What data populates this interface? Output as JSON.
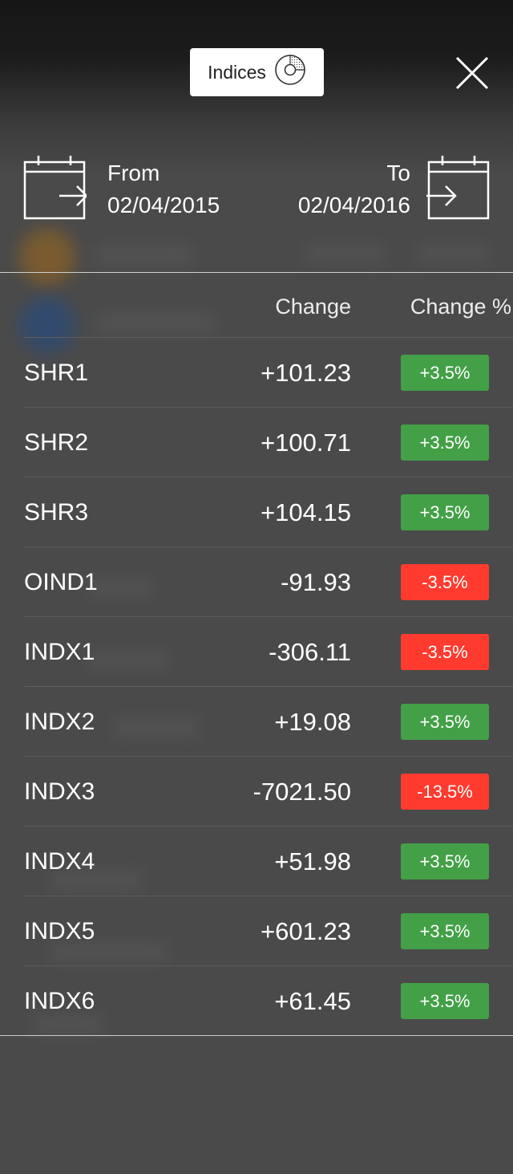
{
  "colors": {
    "positive": "#43a047",
    "negative": "#ff3b2f",
    "text": "#ffffff",
    "overlay": "#4a4a4a"
  },
  "header": {
    "selector_label": "Indices",
    "selector_icon": "pie-chart-icon",
    "close_icon": "close-icon"
  },
  "date_range": {
    "from_label": "From",
    "from_value": "02/04/2015",
    "to_label": "To",
    "to_value": "02/04/2016"
  },
  "table": {
    "columns": {
      "change": "Change",
      "change_pct": "Change %"
    },
    "rows": [
      {
        "name": "SHR1",
        "change": "+101.23",
        "pct": "+3.5%",
        "direction": "up"
      },
      {
        "name": "SHR2",
        "change": "+100.71",
        "pct": "+3.5%",
        "direction": "up"
      },
      {
        "name": "SHR3",
        "change": "+104.15",
        "pct": "+3.5%",
        "direction": "up"
      },
      {
        "name": "OIND1",
        "change": "-91.93",
        "pct": "-3.5%",
        "direction": "down"
      },
      {
        "name": "INDX1",
        "change": "-306.11",
        "pct": "-3.5%",
        "direction": "down"
      },
      {
        "name": "INDX2",
        "change": "+19.08",
        "pct": "+3.5%",
        "direction": "up"
      },
      {
        "name": "INDX3",
        "change": "-7021.50",
        "pct": "-13.5%",
        "direction": "down"
      },
      {
        "name": "INDX4",
        "change": "+51.98",
        "pct": "+3.5%",
        "direction": "up"
      },
      {
        "name": "INDX5",
        "change": "+601.23",
        "pct": "+3.5%",
        "direction": "up"
      },
      {
        "name": "INDX6",
        "change": "+61.45",
        "pct": "+3.5%",
        "direction": "up"
      }
    ]
  }
}
